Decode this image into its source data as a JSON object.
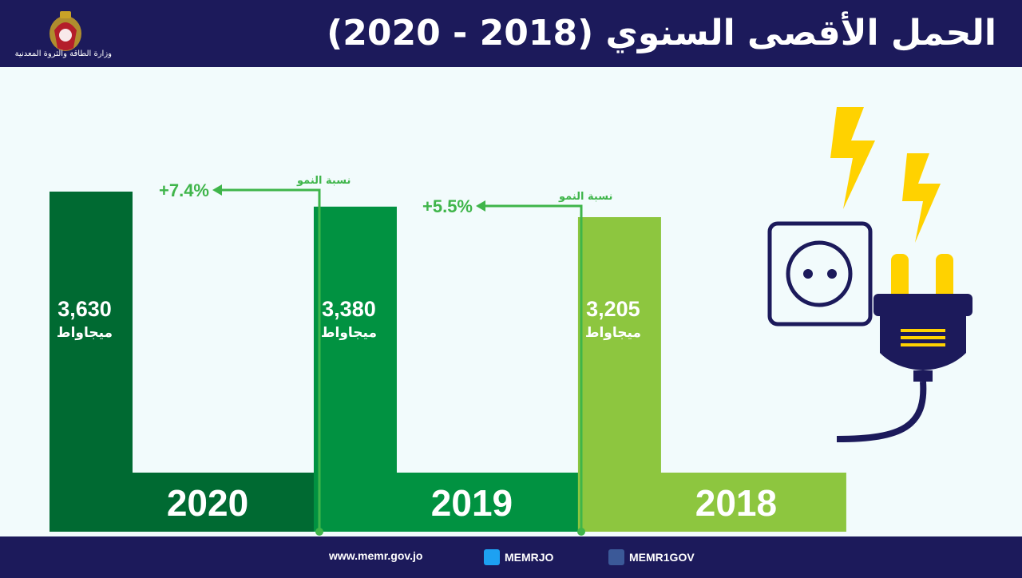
{
  "header": {
    "title": "الحمل الأقصى السنوي (2018 - 2020)",
    "logo_text": "وزارة الطاقة والثروة المعدنية"
  },
  "footer": {
    "website": "www.memr.gov.jo",
    "twitter": "MEMRJO",
    "facebook": "MEMR1GOV"
  },
  "colors": {
    "header_bg": "#1c1a5b",
    "bar_2020": "#006a32",
    "bar_2019": "#019241",
    "bar_2018": "#8dc63f",
    "growth": "#3fb54a",
    "bolt": "#ffd200"
  },
  "icons": [
    "crest-icon",
    "lightning-bolt-icon",
    "power-socket-icon",
    "electric-plug-icon",
    "twitter-icon",
    "facebook-icon"
  ],
  "chart_data": {
    "type": "bar",
    "title": "الحمل الأقصى السنوي (2018 - 2020)",
    "categories": [
      "2020",
      "2019",
      "2018"
    ],
    "values": [
      3630,
      3380,
      3205
    ],
    "value_labels": [
      "3,630",
      "3,380",
      "3,205"
    ],
    "unit": "ميجاواط",
    "ylim": [
      0,
      3630
    ],
    "growth": [
      {
        "from": "2019",
        "to": "2020",
        "label": "+7.4%",
        "caption": "نسبة النمو"
      },
      {
        "from": "2018",
        "to": "2019",
        "label": "+5.5%",
        "caption": "نسبة النمو"
      }
    ],
    "grid": false,
    "legend": "none"
  }
}
